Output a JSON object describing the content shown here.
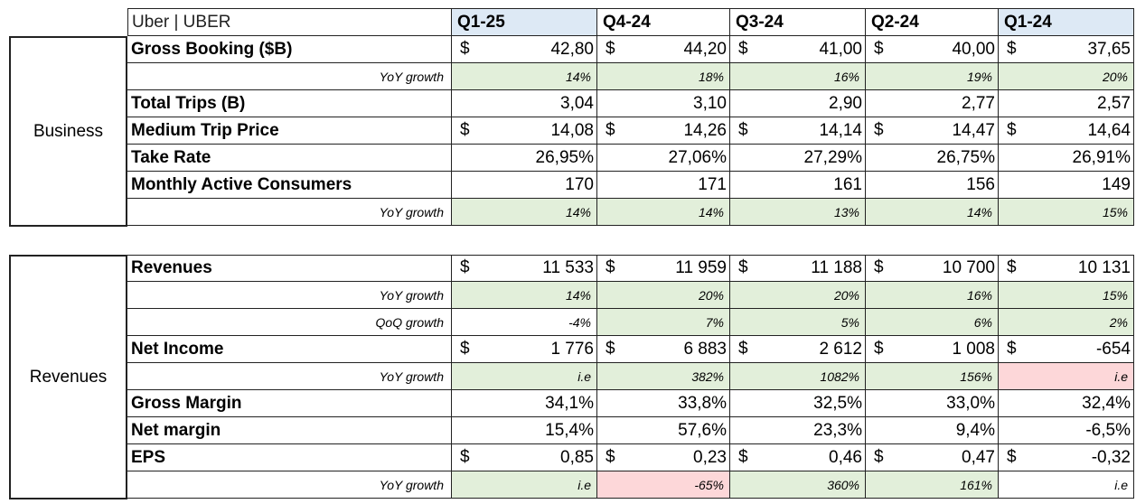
{
  "title": "Uber | UBER",
  "quarters": [
    {
      "label": "Q1-25",
      "highlight": true
    },
    {
      "label": "Q4-24",
      "highlight": false
    },
    {
      "label": "Q3-24",
      "highlight": false
    },
    {
      "label": "Q2-24",
      "highlight": false
    },
    {
      "label": "Q1-24",
      "highlight": true
    }
  ],
  "colors": {
    "header_highlight": "#dde9f5",
    "positive": "#e2efda",
    "negative": "#fdd7d9"
  },
  "sections": [
    {
      "name": "Business",
      "rows": [
        {
          "label": "Gross Booking ($B)",
          "type": "main",
          "currency": "$",
          "values": [
            "42,80",
            "44,20",
            "41,00",
            "40,00",
            "37,65"
          ]
        },
        {
          "label": "YoY growth",
          "type": "sub",
          "values": [
            "14%",
            "18%",
            "16%",
            "19%",
            "20%"
          ],
          "fills": [
            "green",
            "green",
            "green",
            "green",
            "green"
          ]
        },
        {
          "label": "Total Trips (B)",
          "type": "main",
          "currency": "",
          "values": [
            "3,04",
            "3,10",
            "2,90",
            "2,77",
            "2,57"
          ]
        },
        {
          "label": "Medium Trip Price",
          "type": "main",
          "currency": "$",
          "values": [
            "14,08",
            "14,26",
            "14,14",
            "14,47",
            "14,64"
          ]
        },
        {
          "label": "Take Rate",
          "type": "main",
          "currency": "",
          "values": [
            "26,95%",
            "27,06%",
            "27,29%",
            "26,75%",
            "26,91%"
          ]
        },
        {
          "label": "Monthly Active Consumers",
          "type": "main",
          "currency": "",
          "values": [
            "170",
            "171",
            "161",
            "156",
            "149"
          ]
        },
        {
          "label": "YoY growth",
          "type": "sub",
          "values": [
            "14%",
            "14%",
            "13%",
            "14%",
            "15%"
          ],
          "fills": [
            "green",
            "green",
            "green",
            "green",
            "green"
          ]
        }
      ]
    },
    {
      "name": "Revenues",
      "rows": [
        {
          "label": "Revenues",
          "type": "main",
          "currency": "$",
          "values": [
            "11 533",
            "11 959",
            "11 188",
            "10 700",
            "10 131"
          ]
        },
        {
          "label": "YoY growth",
          "type": "sub",
          "values": [
            "14%",
            "20%",
            "20%",
            "16%",
            "15%"
          ],
          "fills": [
            "green",
            "green",
            "green",
            "green",
            "green"
          ]
        },
        {
          "label": "QoQ growth",
          "type": "sub",
          "values": [
            "-4%",
            "7%",
            "5%",
            "6%",
            "2%"
          ],
          "fills": [
            "none",
            "green",
            "green",
            "green",
            "green"
          ]
        },
        {
          "label": "Net Income",
          "type": "main",
          "currency": "$",
          "values": [
            "1 776",
            "6 883",
            "2 612",
            "1 008",
            "-654"
          ]
        },
        {
          "label": "YoY growth",
          "type": "sub",
          "values": [
            "i.e",
            "382%",
            "1082%",
            "156%",
            "i.e"
          ],
          "fills": [
            "green",
            "green",
            "green",
            "green",
            "red"
          ]
        },
        {
          "label": "Gross Margin",
          "type": "main",
          "currency": "",
          "values": [
            "34,1%",
            "33,8%",
            "32,5%",
            "33,0%",
            "32,4%"
          ]
        },
        {
          "label": "Net margin",
          "type": "main",
          "currency": "",
          "values": [
            "15,4%",
            "57,6%",
            "23,3%",
            "9,4%",
            "-6,5%"
          ]
        },
        {
          "label": "EPS",
          "type": "main",
          "currency": "$",
          "values": [
            "0,85",
            "0,23",
            "0,46",
            "0,47",
            "-0,32"
          ]
        },
        {
          "label": "YoY growth",
          "type": "sub",
          "values": [
            "i.e",
            "-65%",
            "360%",
            "161%",
            "i.e"
          ],
          "fills": [
            "green",
            "red",
            "green",
            "green",
            "none"
          ]
        }
      ]
    }
  ]
}
